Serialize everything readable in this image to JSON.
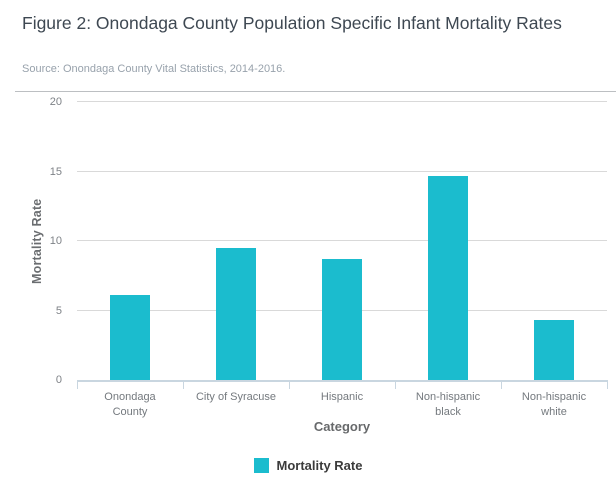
{
  "figure": {
    "title": "Figure 2: Onondaga County Population Specific Infant Mortality Rates",
    "source": "Source: Onondaga County Vital Statistics, 2014-2016."
  },
  "chart_data": {
    "type": "bar",
    "title": "Figure 2: Onondaga County Population Specific Infant Mortality Rates",
    "categories": [
      "Onondaga\nCounty",
      "City of Syracuse",
      "Hispanic",
      "Non-hispanic\nblack",
      "Non-hispanic\nwhite"
    ],
    "series": [
      {
        "name": "Mortality Rate",
        "values": [
          6.1,
          9.5,
          8.7,
          14.7,
          4.3
        ]
      }
    ],
    "xlabel": "Category",
    "ylabel": "Mortality Rate",
    "ylim": [
      0,
      20
    ],
    "yticks": [
      0,
      5,
      10,
      15,
      20
    ],
    "grid": true,
    "legend_position": "bottom",
    "bar_color": "#1bbcce",
    "axis_line_color": "#c9d6e0",
    "gridline_color": "#d9d9d9"
  },
  "legend": {
    "items": [
      {
        "label": "Mortality Rate",
        "color": "#1bbcce"
      }
    ]
  }
}
